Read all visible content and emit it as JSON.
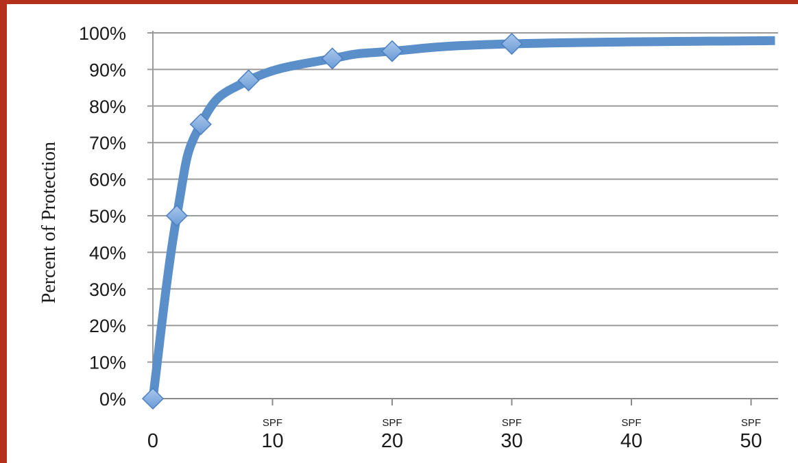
{
  "frame": {
    "border_color": "#b5301a"
  },
  "chart_data": {
    "type": "line",
    "title": "",
    "xlabel": "",
    "ylabel": "Percent of Protection",
    "x": [
      0,
      2,
      4,
      8,
      15,
      20,
      30
    ],
    "series": [
      {
        "values": [
          0,
          50,
          75,
          87,
          93,
          95,
          97
        ]
      }
    ],
    "curve_end": {
      "x": 52,
      "y": 97.9
    },
    "xlim": [
      0,
      52
    ],
    "ylim": [
      0,
      100
    ],
    "y_ticks": [
      {
        "value": 0,
        "label": "0%"
      },
      {
        "value": 10,
        "label": "10%"
      },
      {
        "value": 20,
        "label": "20%"
      },
      {
        "value": 30,
        "label": "30%"
      },
      {
        "value": 40,
        "label": "40%"
      },
      {
        "value": 50,
        "label": "50%"
      },
      {
        "value": 60,
        "label": "60%"
      },
      {
        "value": 70,
        "label": "70%"
      },
      {
        "value": 80,
        "label": "80%"
      },
      {
        "value": 90,
        "label": "90%"
      },
      {
        "value": 100,
        "label": "100%"
      }
    ],
    "x_ticks": [
      {
        "value": 0,
        "label": "0",
        "prefix": ""
      },
      {
        "value": 10,
        "label": "10",
        "prefix": "SPF"
      },
      {
        "value": 20,
        "label": "20",
        "prefix": "SPF"
      },
      {
        "value": 30,
        "label": "30",
        "prefix": "SPF"
      },
      {
        "value": 40,
        "label": "40",
        "prefix": "SPF"
      },
      {
        "value": 50,
        "label": "50",
        "prefix": "SPF"
      }
    ],
    "grid": true,
    "line_color": "#5b8fc9",
    "marker": "diamond",
    "marker_color": "#7ba7dc",
    "marker_edge": "#4a7fc0"
  }
}
